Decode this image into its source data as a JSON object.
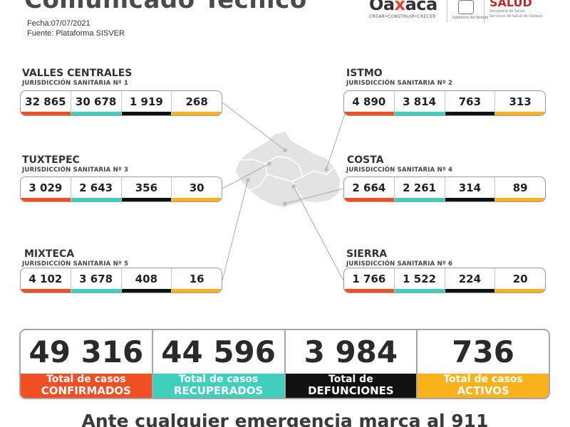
{
  "header": {
    "title": "Comunicado Técnico",
    "date": "Fecha:07/07/2021",
    "source": "Fuente: Plataforma SISVER"
  },
  "logos": {
    "oaxaca_word_a": "Oa",
    "oaxaca_word_x": "x",
    "oaxaca_word_b": "aca",
    "oaxaca_tagline": "CREAR•CONSTRUIR•CRECER",
    "gobierno_caption": "Gobierno del Estado",
    "salud_word": "SALUD",
    "salud_sub1": "Secretaría de Salud",
    "salud_sub2": "Servicios de Salud de Oaxaca"
  },
  "regions": {
    "valles": {
      "name": "VALLES CENTRALES",
      "sub": "JURISDICCIÓN SANITARIA Nº 1",
      "values": [
        "32 865",
        "30 678",
        "1 919",
        "268"
      ]
    },
    "tuxtepec": {
      "name": "TUXTEPEC",
      "sub": "JURISDICCIÓN SANITARIA Nº 3",
      "values": [
        "3 029",
        "2 643",
        "356",
        "30"
      ]
    },
    "mixteca": {
      "name": "MIXTECA",
      "sub": "JURISDICCIÓN SANITARIA Nº 5",
      "values": [
        "4 102",
        "3 678",
        "408",
        "16"
      ]
    },
    "istmo": {
      "name": "ISTMO",
      "sub": "JURISDICCIÓN SANITARIA Nº 2",
      "values": [
        "4 890",
        "3 814",
        "763",
        "313"
      ]
    },
    "costa": {
      "name": "COSTA",
      "sub": "JURISDICCIÓN SANITARIA Nº 4",
      "values": [
        "2 664",
        "2 261",
        "314",
        "89"
      ]
    },
    "sierra": {
      "name": "SIERRA",
      "sub": "JURISDICCIÓN SANITARIA Nº 6",
      "values": [
        "1 766",
        "1 522",
        "224",
        "20"
      ]
    }
  },
  "totals": [
    {
      "value": "49 316",
      "line1": "Total de casos",
      "line2": "CONFIRMADOS"
    },
    {
      "value": "44 596",
      "line1": "Total de casos",
      "line2": "RECUPERADOS"
    },
    {
      "value": "3 984",
      "line1": "Total de",
      "line2": "DEFUNCIONES"
    },
    {
      "value": "736",
      "line1": "Total de casos",
      "line2": "ACTIVOS"
    }
  ],
  "footer": "Ante cualquier emergencia marca al 911",
  "colors": {
    "confirmados": "#f04e23",
    "recuperados": "#3fd0bd",
    "defunciones": "#111111",
    "activos": "#f9b21c"
  }
}
